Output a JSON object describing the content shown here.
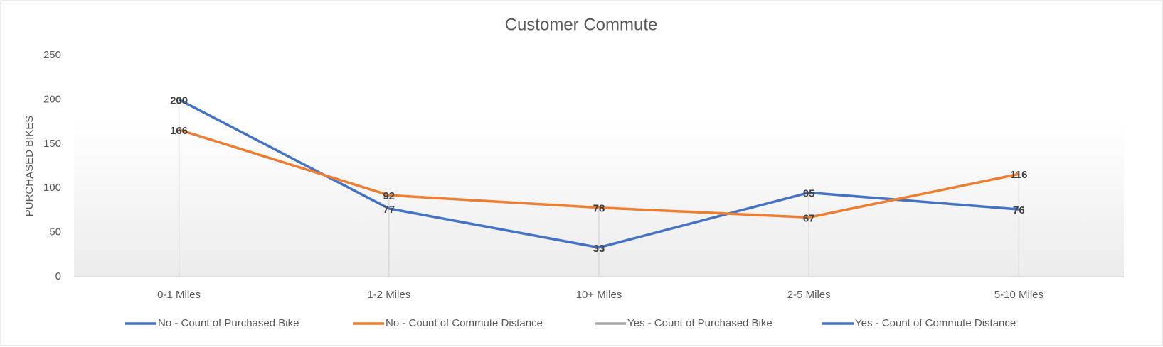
{
  "chart_data": {
    "type": "line",
    "title": "Customer Commute",
    "y_label": "PURCHASED BIKES",
    "categories": [
      "0-1 Miles",
      "1-2 Miles",
      "10+ Miles",
      "2-5 Miles",
      "5-10 Miles"
    ],
    "series": [
      {
        "name": "No - Count of Purchased Bike",
        "color": "#4472c4",
        "values": [
          200,
          77,
          33,
          95,
          76
        ]
      },
      {
        "name": "No - Count of Commute Distance",
        "color": "#ed7d31",
        "values": [
          166,
          92,
          78,
          67,
          116
        ]
      },
      {
        "name": "Yes - Count of Purchased Bike",
        "color": "#a5a5a5",
        "values": [
          null,
          null,
          null,
          null,
          null
        ]
      },
      {
        "name": "Yes - Count of Commute Distance",
        "color": "#4472c4",
        "values": [
          null,
          null,
          null,
          null,
          null
        ]
      }
    ],
    "ylim": [
      0,
      250
    ],
    "yticks": [
      0,
      50,
      100,
      150,
      200,
      250
    ],
    "grid": false,
    "drop_lines": true,
    "data_labels": true,
    "legend": "bottom"
  }
}
